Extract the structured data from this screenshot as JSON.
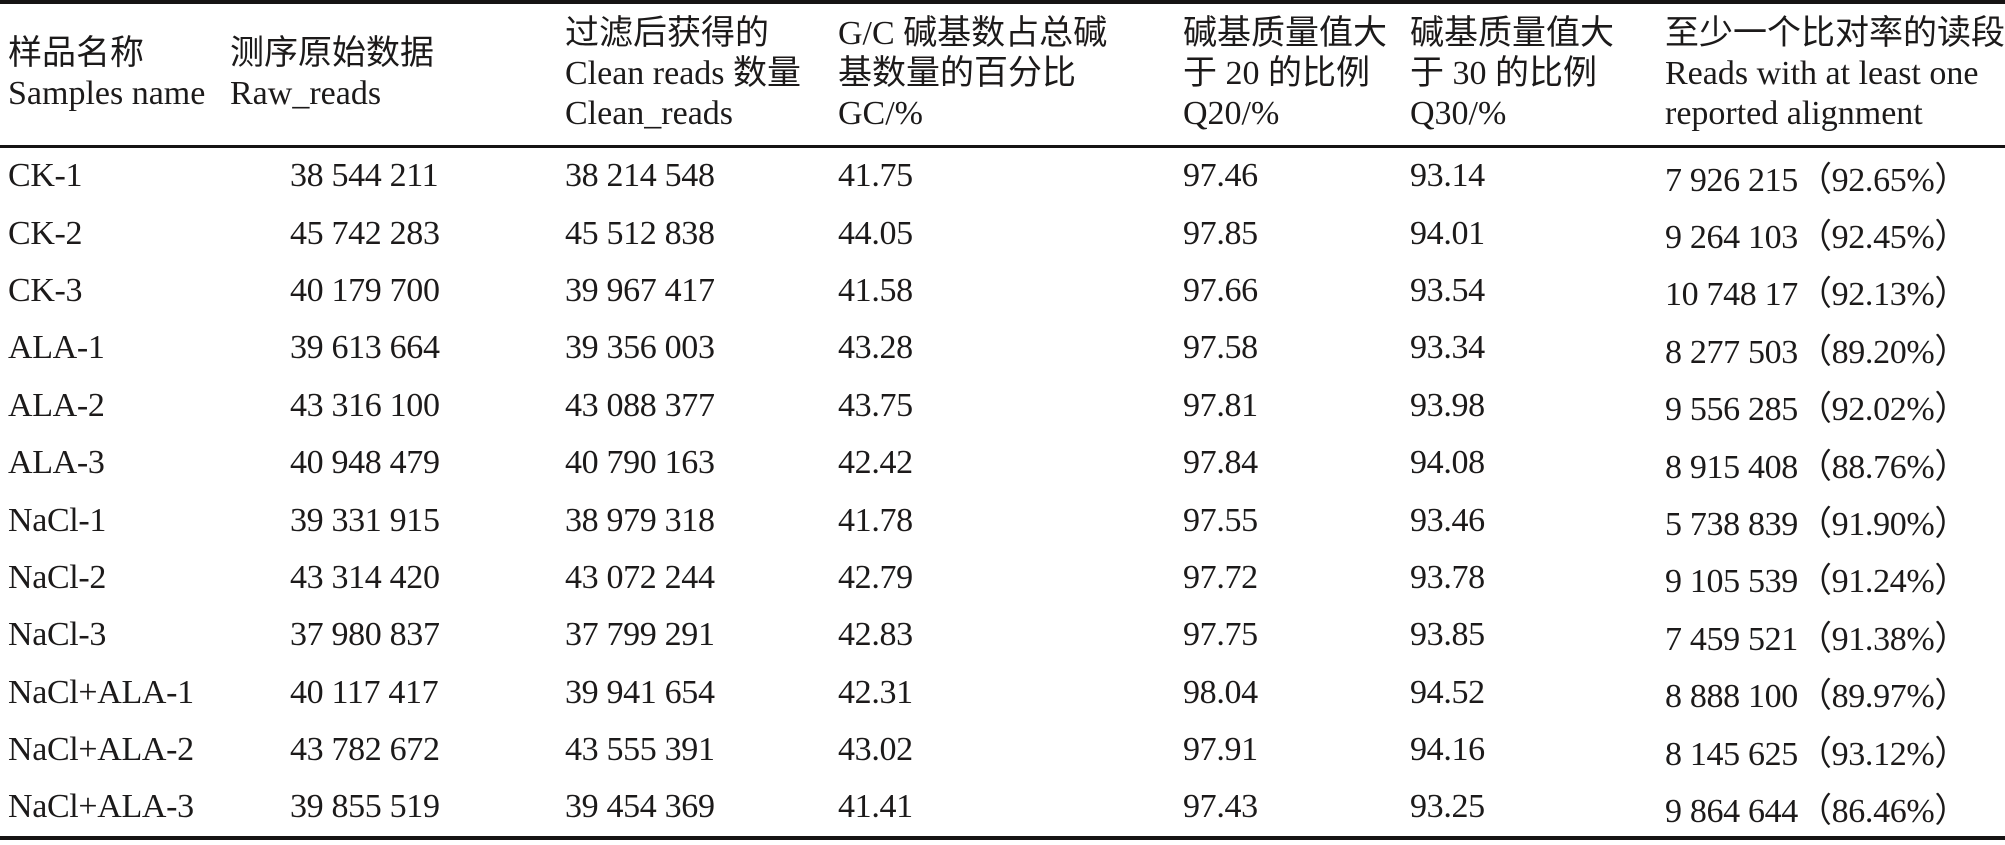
{
  "page": {
    "background_color": "#ffffff",
    "text_color": "#1c1a1a",
    "rule_color": "#161414"
  },
  "table": {
    "columns": [
      {
        "id": "sample",
        "lines": [
          "样品名称",
          "Samples name"
        ]
      },
      {
        "id": "raw_reads",
        "lines": [
          "测序原始数据",
          "Raw_reads"
        ]
      },
      {
        "id": "clean_reads",
        "lines": [
          "过滤后获得的",
          "Clean reads 数量",
          "Clean_reads"
        ]
      },
      {
        "id": "gc",
        "lines": [
          "G/C 碱基数占总碱",
          "基数量的百分比",
          "GC/%"
        ]
      },
      {
        "id": "q20",
        "lines": [
          "碱基质量值大",
          "于 20 的比例",
          "Q20/%"
        ]
      },
      {
        "id": "q30",
        "lines": [
          "碱基质量值大",
          "于 30 的比例",
          "Q30/%"
        ]
      },
      {
        "id": "alignment",
        "lines": [
          "至少一个比对率的读段",
          "Reads with at least one",
          "reported alignment"
        ]
      }
    ],
    "rows": [
      {
        "sample": "CK-1",
        "raw_reads": "38 544 211",
        "clean_reads": "38 214 548",
        "gc": "41.75",
        "q20": "97.46",
        "q30": "93.14",
        "alignment": "7 926 215（92.65%）"
      },
      {
        "sample": "CK-2",
        "raw_reads": "45 742 283",
        "clean_reads": "45 512 838",
        "gc": "44.05",
        "q20": "97.85",
        "q30": "94.01",
        "alignment": "9 264 103（92.45%）"
      },
      {
        "sample": "CK-3",
        "raw_reads": "40 179 700",
        "clean_reads": "39 967 417",
        "gc": "41.58",
        "q20": "97.66",
        "q30": "93.54",
        "alignment": "10 748 17（92.13%）"
      },
      {
        "sample": "ALA-1",
        "raw_reads": "39 613 664",
        "clean_reads": "39 356 003",
        "gc": "43.28",
        "q20": "97.58",
        "q30": "93.34",
        "alignment": "8 277 503（89.20%）"
      },
      {
        "sample": "ALA-2",
        "raw_reads": "43 316 100",
        "clean_reads": "43 088 377",
        "gc": "43.75",
        "q20": "97.81",
        "q30": "93.98",
        "alignment": "9 556 285（92.02%）"
      },
      {
        "sample": "ALA-3",
        "raw_reads": "40 948 479",
        "clean_reads": "40 790 163",
        "gc": "42.42",
        "q20": "97.84",
        "q30": "94.08",
        "alignment": "8 915 408（88.76%）"
      },
      {
        "sample": "NaCl-1",
        "raw_reads": "39 331 915",
        "clean_reads": "38 979 318",
        "gc": "41.78",
        "q20": "97.55",
        "q30": "93.46",
        "alignment": "5 738 839（91.90%）"
      },
      {
        "sample": "NaCl-2",
        "raw_reads": "43 314 420",
        "clean_reads": "43 072 244",
        "gc": "42.79",
        "q20": "97.72",
        "q30": "93.78",
        "alignment": "9 105 539（91.24%）"
      },
      {
        "sample": "NaCl-3",
        "raw_reads": "37 980 837",
        "clean_reads": "37 799 291",
        "gc": "42.83",
        "q20": "97.75",
        "q30": "93.85",
        "alignment": "7 459 521（91.38%）"
      },
      {
        "sample": "NaCl+ALA-1",
        "raw_reads": "40 117 417",
        "clean_reads": "39 941 654",
        "gc": "42.31",
        "q20": "98.04",
        "q30": "94.52",
        "alignment": "8 888 100（89.97%）"
      },
      {
        "sample": "NaCl+ALA-2",
        "raw_reads": "43 782 672",
        "clean_reads": "43 555 391",
        "gc": "43.02",
        "q20": "97.91",
        "q30": "94.16",
        "alignment": "8 145 625（93.12%）"
      },
      {
        "sample": "NaCl+ALA-3",
        "raw_reads": "39 855 519",
        "clean_reads": "39 454 369",
        "gc": "41.41",
        "q20": "97.43",
        "q30": "93.25",
        "alignment": "9 864 644（86.46%）"
      }
    ]
  }
}
